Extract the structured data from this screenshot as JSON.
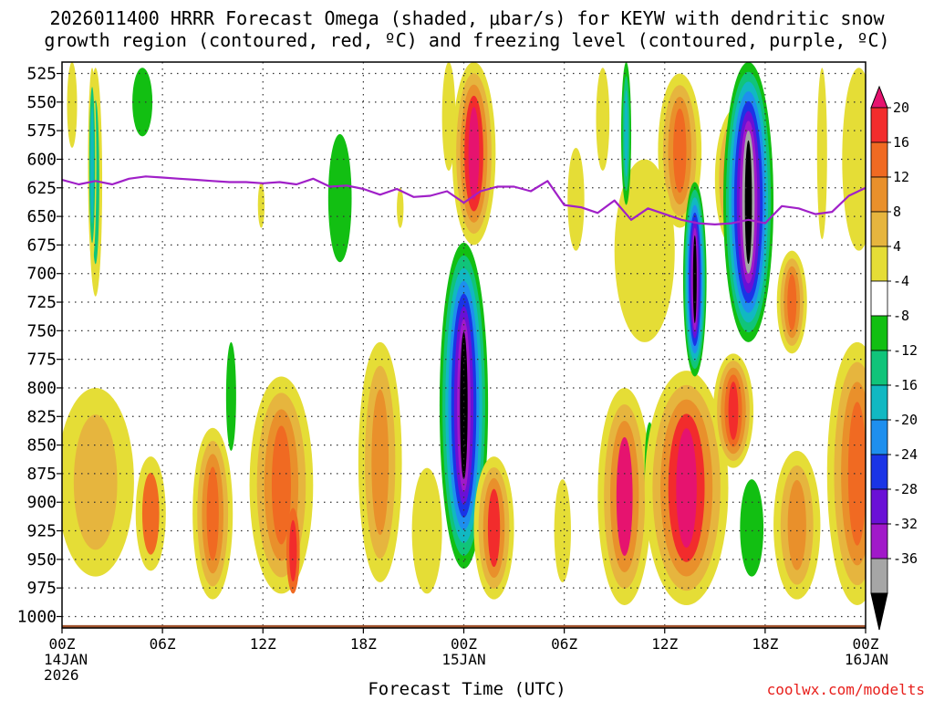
{
  "title_line1": "2026011400 HRRR Forecast Omega (shaded, μbar/s) for KEYW with dendritic snow",
  "title_line2": "growth region (contoured, red, ºC) and freezing level (contoured, purple, ºC)",
  "xlabel": "Forecast Time (UTC)",
  "credit": "coolwx.com/modelts",
  "chart_data": {
    "type": "heatmap",
    "variable": "Omega",
    "units": "μbar/s",
    "x_range_hours": [
      0,
      48
    ],
    "y_range_hPa": [
      515,
      1010
    ],
    "y_ticks": [
      525,
      550,
      575,
      600,
      625,
      650,
      675,
      700,
      725,
      750,
      775,
      800,
      825,
      850,
      875,
      900,
      925,
      950,
      975,
      1000
    ],
    "x_ticks": [
      {
        "hour": 0,
        "lines": [
          "00Z",
          "14JAN",
          "2026"
        ]
      },
      {
        "hour": 6,
        "lines": [
          "06Z"
        ]
      },
      {
        "hour": 12,
        "lines": [
          "12Z"
        ]
      },
      {
        "hour": 18,
        "lines": [
          "18Z"
        ]
      },
      {
        "hour": 24,
        "lines": [
          "00Z",
          "15JAN"
        ]
      },
      {
        "hour": 30,
        "lines": [
          "06Z"
        ]
      },
      {
        "hour": 36,
        "lines": [
          "12Z"
        ]
      },
      {
        "hour": 42,
        "lines": [
          "18Z"
        ]
      },
      {
        "hour": 48,
        "lines": [
          "00Z",
          "16JAN"
        ]
      }
    ],
    "colorbar": {
      "labels": [
        "20",
        "16",
        "12",
        "8",
        "4",
        "-4",
        "-8",
        "-12",
        "-16",
        "-20",
        "-24",
        "-28",
        "-32",
        "-36"
      ],
      "colors_top_to_bottom": [
        "#e6136f",
        "#f22c2c",
        "#f06a22",
        "#e9902b",
        "#e6b53e",
        "#e5dd36",
        "#ffffff",
        "#12bf12",
        "#10c47a",
        "#11b8c2",
        "#1e8fee",
        "#1a34e6",
        "#6a10d6",
        "#a119c9",
        "#a6a6a6",
        "#000000"
      ]
    },
    "freezing_level_hPa": [
      [
        0,
        618
      ],
      [
        1,
        622
      ],
      [
        2,
        619
      ],
      [
        3,
        622
      ],
      [
        4,
        617
      ],
      [
        5,
        615
      ],
      [
        6,
        616
      ],
      [
        7,
        617
      ],
      [
        8,
        618
      ],
      [
        9,
        619
      ],
      [
        10,
        620
      ],
      [
        11,
        620
      ],
      [
        12,
        621
      ],
      [
        13,
        620
      ],
      [
        14,
        622
      ],
      [
        15,
        617
      ],
      [
        16,
        624
      ],
      [
        17,
        623
      ],
      [
        18,
        626
      ],
      [
        19,
        631
      ],
      [
        20,
        626
      ],
      [
        21,
        633
      ],
      [
        22,
        632
      ],
      [
        23,
        628
      ],
      [
        24,
        638
      ],
      [
        25,
        628
      ],
      [
        26,
        624
      ],
      [
        27,
        624
      ],
      [
        28,
        628
      ],
      [
        29,
        619
      ],
      [
        30,
        640
      ],
      [
        31,
        642
      ],
      [
        32,
        647
      ],
      [
        33,
        636
      ],
      [
        34,
        653
      ],
      [
        35,
        643
      ],
      [
        36,
        648
      ],
      [
        37,
        653
      ],
      [
        38,
        656
      ],
      [
        39,
        657
      ],
      [
        40,
        656
      ],
      [
        41,
        653
      ],
      [
        42,
        656
      ],
      [
        43,
        641
      ],
      [
        44,
        643
      ],
      [
        45,
        648
      ],
      [
        46,
        646
      ],
      [
        47,
        632
      ],
      [
        48,
        625
      ]
    ],
    "blobs": [
      {
        "hour": 2.0,
        "top_hPa": 520,
        "bottom_hPa": 720,
        "hw_h": 0.4,
        "levels": [
          5,
          8
        ]
      },
      {
        "hour": 1.8,
        "top_hPa": 520,
        "bottom_hPa": 690,
        "hw_h": 0.25,
        "levels": [
          5,
          8,
          9
        ]
      },
      {
        "hour": 4.8,
        "top_hPa": 520,
        "bottom_hPa": 580,
        "hw_h": 0.6,
        "levels": [
          7
        ]
      },
      {
        "hour": 16.6,
        "top_hPa": 578,
        "bottom_hPa": 690,
        "hw_h": 0.7,
        "levels": [
          7
        ]
      },
      {
        "hour": 10.1,
        "top_hPa": 760,
        "bottom_hPa": 855,
        "hw_h": 0.3,
        "levels": [
          7
        ]
      },
      {
        "hour": 24.0,
        "top_hPa": 673,
        "bottom_hPa": 958,
        "hw_h": 1.45,
        "levels": [
          7,
          8,
          9,
          10,
          11,
          12,
          13,
          15
        ]
      },
      {
        "hour": 24.6,
        "top_hPa": 515,
        "bottom_hPa": 675,
        "hw_h": 1.3,
        "levels": [
          5,
          4,
          3,
          1,
          0
        ]
      },
      {
        "hour": 25.8,
        "top_hPa": 860,
        "bottom_hPa": 985,
        "hw_h": 1.2,
        "levels": [
          5,
          4,
          3,
          1
        ]
      },
      {
        "hour": 19.0,
        "top_hPa": 760,
        "bottom_hPa": 970,
        "hw_h": 1.3,
        "levels": [
          5,
          4,
          3
        ]
      },
      {
        "hour": 13.1,
        "top_hPa": 790,
        "bottom_hPa": 980,
        "hw_h": 1.9,
        "levels": [
          5,
          4,
          3,
          2
        ]
      },
      {
        "hour": 13.8,
        "top_hPa": 905,
        "bottom_hPa": 980,
        "hw_h": 0.4,
        "levels": [
          2,
          1
        ]
      },
      {
        "hour": 2.0,
        "top_hPa": 800,
        "bottom_hPa": 965,
        "hw_h": 2.3,
        "levels": [
          5,
          4
        ]
      },
      {
        "hour": 5.3,
        "top_hPa": 860,
        "bottom_hPa": 960,
        "hw_h": 0.9,
        "levels": [
          5,
          2
        ]
      },
      {
        "hour": 9.0,
        "top_hPa": 835,
        "bottom_hPa": 985,
        "hw_h": 1.2,
        "levels": [
          5,
          4,
          3,
          2
        ]
      },
      {
        "hour": 21.8,
        "top_hPa": 870,
        "bottom_hPa": 980,
        "hw_h": 0.9,
        "levels": [
          5
        ]
      },
      {
        "hour": 29.9,
        "top_hPa": 880,
        "bottom_hPa": 970,
        "hw_h": 0.5,
        "levels": [
          5
        ]
      },
      {
        "hour": 33.6,
        "top_hPa": 800,
        "bottom_hPa": 990,
        "hw_h": 1.6,
        "levels": [
          5,
          4,
          3,
          0
        ]
      },
      {
        "hour": 35.1,
        "top_hPa": 830,
        "bottom_hPa": 910,
        "hw_h": 0.3,
        "levels": [
          7
        ]
      },
      {
        "hour": 37.3,
        "top_hPa": 785,
        "bottom_hPa": 990,
        "hw_h": 2.5,
        "levels": [
          5,
          4,
          3,
          1,
          0
        ]
      },
      {
        "hour": 40.1,
        "top_hPa": 770,
        "bottom_hPa": 870,
        "hw_h": 1.2,
        "levels": [
          5,
          4,
          3,
          2,
          1
        ]
      },
      {
        "hour": 41.2,
        "top_hPa": 880,
        "bottom_hPa": 965,
        "hw_h": 0.7,
        "levels": [
          7
        ]
      },
      {
        "hour": 43.6,
        "top_hPa": 680,
        "bottom_hPa": 770,
        "hw_h": 0.9,
        "levels": [
          5,
          4,
          3,
          2
        ]
      },
      {
        "hour": 43.9,
        "top_hPa": 855,
        "bottom_hPa": 985,
        "hw_h": 1.4,
        "levels": [
          5,
          4,
          3
        ]
      },
      {
        "hour": 47.5,
        "top_hPa": 760,
        "bottom_hPa": 990,
        "hw_h": 1.8,
        "levels": [
          5,
          4,
          3,
          2
        ]
      },
      {
        "hour": 47.6,
        "top_hPa": 520,
        "bottom_hPa": 680,
        "hw_h": 1.0,
        "levels": [
          5
        ]
      },
      {
        "hour": 45.4,
        "top_hPa": 520,
        "bottom_hPa": 670,
        "hw_h": 0.3,
        "levels": [
          5
        ]
      },
      {
        "hour": 40.3,
        "top_hPa": 555,
        "bottom_hPa": 680,
        "hw_h": 1.3,
        "levels": [
          5,
          4,
          3,
          2,
          1
        ]
      },
      {
        "hour": 41.0,
        "top_hPa": 515,
        "bottom_hPa": 760,
        "hw_h": 1.5,
        "levels": [
          7,
          8,
          9,
          10,
          11,
          12,
          13,
          14,
          15
        ]
      },
      {
        "hour": 36.9,
        "top_hPa": 525,
        "bottom_hPa": 660,
        "hw_h": 1.3,
        "levels": [
          5,
          4,
          3,
          2
        ]
      },
      {
        "hour": 37.8,
        "top_hPa": 620,
        "bottom_hPa": 790,
        "hw_h": 0.7,
        "levels": [
          7,
          8,
          9,
          10,
          11,
          12,
          13,
          15
        ]
      },
      {
        "hour": 34.8,
        "top_hPa": 600,
        "bottom_hPa": 760,
        "hw_h": 1.8,
        "levels": [
          5
        ]
      },
      {
        "hour": 33.7,
        "top_hPa": 515,
        "bottom_hPa": 640,
        "hw_h": 0.3,
        "levels": [
          7,
          8,
          9
        ]
      },
      {
        "hour": 32.3,
        "top_hPa": 520,
        "bottom_hPa": 610,
        "hw_h": 0.4,
        "levels": [
          5
        ]
      },
      {
        "hour": 30.7,
        "top_hPa": 590,
        "bottom_hPa": 680,
        "hw_h": 0.5,
        "levels": [
          5
        ]
      },
      {
        "hour": 23.1,
        "top_hPa": 515,
        "bottom_hPa": 610,
        "hw_h": 0.4,
        "levels": [
          5
        ]
      },
      {
        "hour": 11.9,
        "top_hPa": 620,
        "bottom_hPa": 660,
        "hw_h": 0.2,
        "levels": [
          5
        ]
      },
      {
        "hour": 20.2,
        "top_hPa": 625,
        "bottom_hPa": 660,
        "hw_h": 0.2,
        "levels": [
          5
        ]
      },
      {
        "hour": 0.6,
        "top_hPa": 515,
        "bottom_hPa": 590,
        "hw_h": 0.3,
        "levels": [
          5
        ]
      }
    ],
    "surface_color": "#a0522d",
    "freezing_line_color": "#a020c8"
  }
}
